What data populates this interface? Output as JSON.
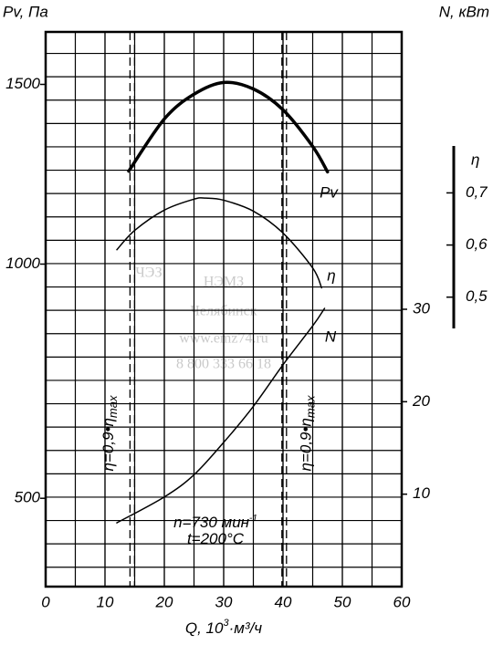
{
  "chart_data": {
    "type": "line",
    "x_label": {
      "text": "Q, 10",
      "sup": "3",
      "after": "·м³/ч"
    },
    "y_label": "Pv, Па",
    "y2_label": "N, кВт",
    "y3_label": "η",
    "xlim": [
      0,
      60
    ],
    "xticks": [
      0,
      10,
      20,
      30,
      40,
      50,
      60
    ],
    "yscale": "sqrt",
    "ylim": [
      356,
      1665
    ],
    "yticks": [
      500,
      1000,
      1500
    ],
    "y2lim": [
      0,
      60
    ],
    "y2ticks": [
      10,
      20,
      30
    ],
    "y3lim": [
      0.44,
      0.79
    ],
    "y3ticks": [
      {
        "value": 0.5,
        "label": "0,5"
      },
      {
        "value": 0.6,
        "label": "0,6"
      },
      {
        "value": 0.7,
        "label": "0,7"
      }
    ],
    "grid": true,
    "series": [
      {
        "name": "Pv",
        "color": "#000000",
        "width": 3.5,
        "axis": "y",
        "x": [
          14,
          20,
          25,
          30,
          35,
          40,
          45,
          47.5
        ],
        "values": [
          1246,
          1396,
          1470,
          1506,
          1486,
          1423,
          1316,
          1244
        ]
      },
      {
        "name": "η",
        "color": "#000000",
        "width": 1.5,
        "axis": "y3",
        "x": [
          12,
          15,
          20,
          25,
          27,
          30,
          35,
          40,
          45,
          46.5
        ],
        "values": [
          0.591,
          0.628,
          0.667,
          0.688,
          0.69,
          0.686,
          0.665,
          0.623,
          0.556,
          0.518
        ]
      },
      {
        "name": "N",
        "color": "#000000",
        "width": 1.5,
        "axis": "y2",
        "x": [
          12,
          20,
          25,
          30,
          35,
          40,
          45,
          47
        ],
        "values": [
          6.9,
          9.7,
          12.1,
          15.6,
          19.5,
          24.0,
          28.2,
          30.1
        ]
      }
    ],
    "bounds": [
      {
        "text": "η=0,9•η",
        "sub": "max",
        "x": 14.6
      },
      {
        "text": "η=0,9•η",
        "sub": "max",
        "x": 40.2
      }
    ],
    "annotations": [
      {
        "text": "n=730 мин",
        "sup": "-1"
      },
      {
        "text": "t=200°C"
      }
    ],
    "watermark": [
      "ЧЭЗ",
      "НЭМЗ",
      "Челябинск",
      "www.emz74.ru",
      "8 800 333 66 18"
    ]
  }
}
